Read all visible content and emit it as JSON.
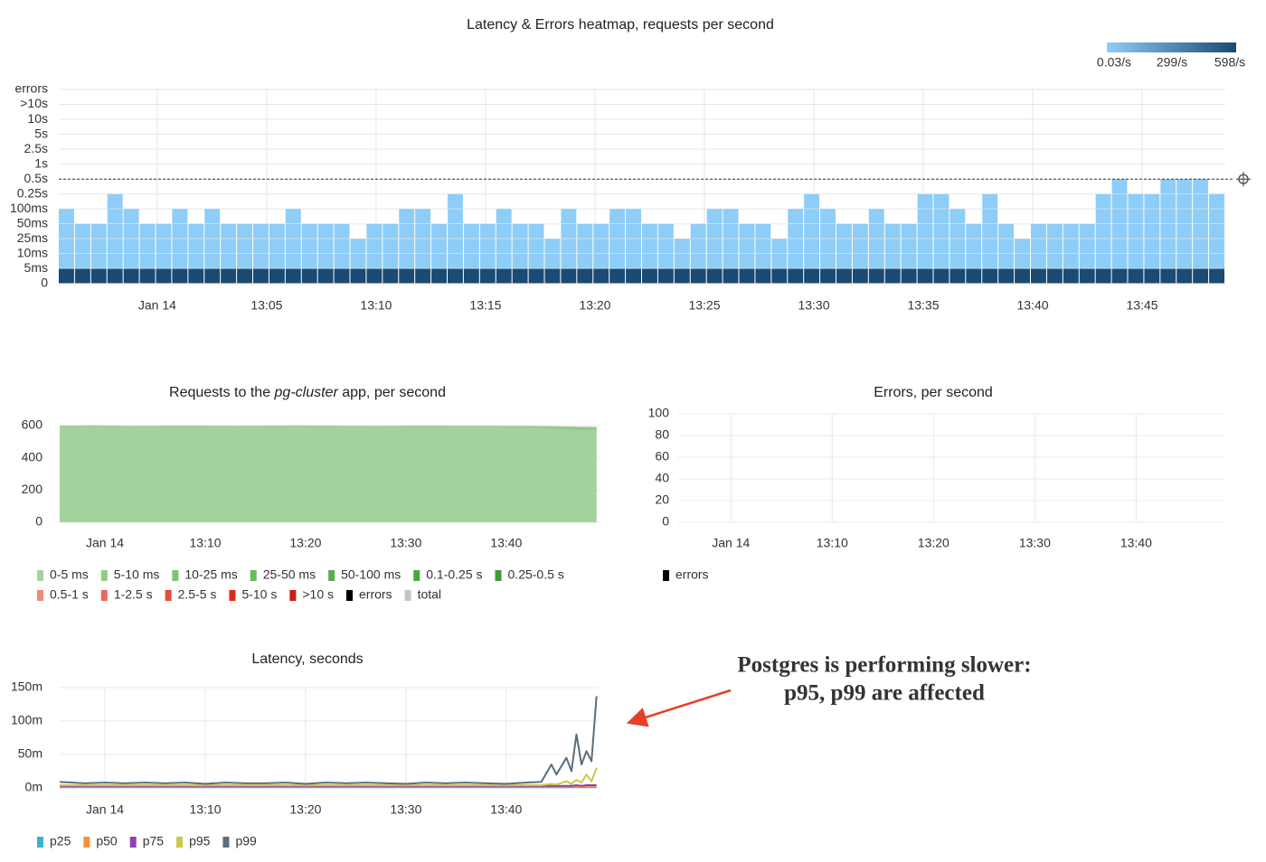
{
  "chart_data": [
    {
      "type": "heatmap",
      "title": "Latency & Errors heatmap, requests per second",
      "y_categories": [
        "0",
        "5ms",
        "10ms",
        "25ms",
        "50ms",
        "100ms",
        "0.25s",
        "0.5s",
        "1s",
        "2.5s",
        "5s",
        "10s",
        ">10s",
        "errors"
      ],
      "values": [
        5,
        4,
        4,
        6,
        5,
        4,
        4,
        5,
        4,
        5,
        4,
        4,
        4,
        4,
        5,
        4,
        4,
        4,
        3,
        4,
        4,
        5,
        5,
        4,
        6,
        4,
        4,
        5,
        4,
        4,
        3,
        5,
        4,
        4,
        5,
        5,
        4,
        4,
        3,
        4,
        5,
        5,
        4,
        4,
        3,
        5,
        6,
        5,
        4,
        4,
        5,
        4,
        4,
        6,
        6,
        5,
        4,
        6,
        4,
        3,
        4,
        4,
        4,
        4,
        6,
        7,
        6,
        6,
        7,
        7,
        7,
        6
      ],
      "row_rates": [
        598,
        1.5,
        1.2,
        0.8,
        0.3,
        0.1,
        0.05,
        0.03,
        0.03,
        0.03,
        0.03,
        0.03,
        0.03
      ],
      "colorscale": {
        "colors": [
          "#8ecdf7",
          "#1b4a72"
        ],
        "ticks": [
          {
            "value": 0.03,
            "label": "0.03/s"
          },
          {
            "value": 299,
            "label": "299/s"
          },
          {
            "value": 598,
            "label": "598/s"
          }
        ]
      },
      "xlim": [
        -4.5,
        48.8
      ],
      "xticks": [
        {
          "value": 0,
          "label": "Jan 14"
        },
        {
          "value": 5,
          "label": "13:05"
        },
        {
          "value": 10,
          "label": "13:10"
        },
        {
          "value": 15,
          "label": "13:15"
        },
        {
          "value": 20,
          "label": "13:20"
        },
        {
          "value": 25,
          "label": "13:25"
        },
        {
          "value": 30,
          "label": "13:30"
        },
        {
          "value": 35,
          "label": "13:35"
        },
        {
          "value": 40,
          "label": "13:40"
        },
        {
          "value": 45,
          "label": "13:45"
        }
      ],
      "grid": true
    },
    {
      "type": "area",
      "title": [
        "Requests to the ",
        "pg-cluster",
        " app, per second"
      ],
      "x": [
        -4.5,
        -1,
        3,
        7,
        11,
        15,
        19,
        23,
        27,
        31,
        35,
        39,
        43,
        46,
        49
      ],
      "series": [
        {
          "name": "0-5 ms",
          "color": "#a3d39c",
          "values": [
            590,
            592,
            588,
            591,
            590,
            589,
            592,
            590,
            588,
            591,
            590,
            589,
            585,
            575,
            570
          ]
        },
        {
          "name": "5-10 ms",
          "color": "#8fcc86",
          "values": [
            3,
            3,
            3,
            3,
            3,
            3,
            3,
            3,
            3,
            3,
            3,
            3,
            5,
            12,
            14
          ]
        },
        {
          "name": "10-25 ms",
          "color": "#7dc373",
          "values": [
            1,
            1,
            1,
            1,
            1,
            1,
            1,
            1,
            1,
            1,
            1,
            1,
            2,
            3,
            3
          ]
        },
        {
          "name": "25-50 ms",
          "color": "#6bbb62",
          "values": [
            0,
            0,
            0,
            0,
            0,
            0,
            0,
            0,
            0,
            0,
            0,
            0,
            0,
            0,
            0
          ]
        },
        {
          "name": "50-100 ms",
          "color": "#5cad52",
          "values": [
            0,
            0,
            0,
            0,
            0,
            0,
            0,
            0,
            0,
            0,
            0,
            0,
            0,
            0,
            0
          ]
        },
        {
          "name": "0.1-0.25 s",
          "color": "#4ea345",
          "values": [
            0,
            0,
            0,
            0,
            0,
            0,
            0,
            0,
            0,
            0,
            0,
            0,
            0,
            0,
            0
          ]
        },
        {
          "name": "0.25-0.5 s",
          "color": "#3f9a38",
          "values": [
            0,
            0,
            0,
            0,
            0,
            0,
            0,
            0,
            0,
            0,
            0,
            0,
            0,
            0,
            0
          ]
        },
        {
          "name": "0.5-1 s",
          "color": "#ef8a7a",
          "values": [
            0,
            0,
            0,
            0,
            0,
            0,
            0,
            0,
            0,
            0,
            0,
            0,
            0,
            0,
            0
          ]
        },
        {
          "name": "1-2.5 s",
          "color": "#ea6a5a",
          "values": [
            0,
            0,
            0,
            0,
            0,
            0,
            0,
            0,
            0,
            0,
            0,
            0,
            0,
            0,
            0
          ]
        },
        {
          "name": "2.5-5 s",
          "color": "#e54b3c",
          "values": [
            0,
            0,
            0,
            0,
            0,
            0,
            0,
            0,
            0,
            0,
            0,
            0,
            0,
            0,
            0
          ]
        },
        {
          "name": "5-10 s",
          "color": "#dd2a20",
          "values": [
            0,
            0,
            0,
            0,
            0,
            0,
            0,
            0,
            0,
            0,
            0,
            0,
            0,
            0,
            0
          ]
        },
        {
          "name": ">10 s",
          "color": "#d01c10",
          "values": [
            0,
            0,
            0,
            0,
            0,
            0,
            0,
            0,
            0,
            0,
            0,
            0,
            0,
            0,
            0
          ]
        },
        {
          "name": "errors",
          "color": "#000000",
          "values": [
            0,
            0,
            0,
            0,
            0,
            0,
            0,
            0,
            0,
            0,
            0,
            0,
            0,
            0,
            0
          ]
        },
        {
          "name": "total",
          "color": "#c4c4c4",
          "stack": false,
          "values": [
            600,
            603,
            598,
            601,
            600,
            599,
            602,
            600,
            598,
            601,
            600,
            599,
            598,
            595,
            592
          ]
        }
      ],
      "xlim": [
        -4.6,
        49.3
      ],
      "xticks": [
        {
          "value": 0,
          "label": "Jan 14"
        },
        {
          "value": 10,
          "label": "13:10"
        },
        {
          "value": 20,
          "label": "13:20"
        },
        {
          "value": 30,
          "label": "13:30"
        },
        {
          "value": 40,
          "label": "13:40"
        }
      ],
      "ylim": [
        0,
        600
      ],
      "yticks": [
        0,
        200,
        400,
        600
      ],
      "grid": true
    },
    {
      "type": "line",
      "title": "Errors, per second",
      "x": [
        0,
        10,
        20,
        30,
        40
      ],
      "series": [
        {
          "name": "errors",
          "color": "#000000",
          "values": [
            null,
            null,
            null,
            null,
            null
          ]
        }
      ],
      "xlim": [
        -5.2,
        48.8
      ],
      "xticks": [
        {
          "value": 0,
          "label": "Jan 14"
        },
        {
          "value": 10,
          "label": "13:10"
        },
        {
          "value": 20,
          "label": "13:20"
        },
        {
          "value": 30,
          "label": "13:30"
        },
        {
          "value": 40,
          "label": "13:40"
        }
      ],
      "ylim": [
        0,
        100
      ],
      "yticks": [
        0,
        20,
        40,
        60,
        80,
        100
      ],
      "grid": true
    },
    {
      "type": "line",
      "title": "Latency, seconds",
      "x": [
        -4.5,
        -2,
        0,
        2,
        4,
        6,
        8,
        10,
        12,
        14,
        16,
        18,
        20,
        22,
        24,
        26,
        28,
        30,
        32,
        34,
        36,
        38,
        40,
        42,
        43.5,
        44.5,
        45,
        46,
        46.5,
        47,
        47.5,
        48,
        48.5,
        49
      ],
      "series": [
        {
          "name": "p25",
          "color": "#3bb3c8",
          "values": [
            0.001,
            0.001,
            0.001,
            0.001,
            0.001,
            0.001,
            0.001,
            0.001,
            0.001,
            0.001,
            0.001,
            0.001,
            0.001,
            0.001,
            0.001,
            0.001,
            0.001,
            0.001,
            0.001,
            0.001,
            0.001,
            0.001,
            0.001,
            0.001,
            0.001,
            0.001,
            0.001,
            0.001,
            0.001,
            0.001,
            0.001,
            0.001,
            0.001,
            0.001
          ]
        },
        {
          "name": "p50",
          "color": "#f2923a",
          "values": [
            0.002,
            0.002,
            0.002,
            0.002,
            0.002,
            0.002,
            0.002,
            0.002,
            0.002,
            0.002,
            0.002,
            0.002,
            0.002,
            0.002,
            0.002,
            0.002,
            0.002,
            0.002,
            0.002,
            0.002,
            0.002,
            0.002,
            0.002,
            0.002,
            0.002,
            0.002,
            0.002,
            0.002,
            0.002,
            0.002,
            0.002,
            0.002,
            0.002,
            0.002
          ]
        },
        {
          "name": "p75",
          "color": "#8e3fb3",
          "values": [
            0.003,
            0.003,
            0.003,
            0.003,
            0.003,
            0.003,
            0.003,
            0.003,
            0.003,
            0.003,
            0.003,
            0.003,
            0.003,
            0.003,
            0.003,
            0.003,
            0.003,
            0.003,
            0.003,
            0.003,
            0.003,
            0.003,
            0.003,
            0.003,
            0.003,
            0.003,
            0.003,
            0.003,
            0.003,
            0.004,
            0.003,
            0.004,
            0.004,
            0.004
          ]
        },
        {
          "name": "p95",
          "color": "#c9c94a",
          "values": [
            0.004,
            0.004,
            0.004,
            0.004,
            0.004,
            0.004,
            0.004,
            0.004,
            0.004,
            0.004,
            0.004,
            0.004,
            0.004,
            0.004,
            0.004,
            0.004,
            0.004,
            0.004,
            0.004,
            0.004,
            0.004,
            0.004,
            0.004,
            0.004,
            0.004,
            0.006,
            0.005,
            0.01,
            0.006,
            0.012,
            0.008,
            0.02,
            0.01,
            0.03
          ]
        },
        {
          "name": "p99",
          "color": "#5a6e7c",
          "values": [
            0.009,
            0.007,
            0.008,
            0.007,
            0.008,
            0.007,
            0.008,
            0.006,
            0.008,
            0.007,
            0.007,
            0.008,
            0.006,
            0.008,
            0.007,
            0.008,
            0.007,
            0.006,
            0.008,
            0.007,
            0.008,
            0.007,
            0.006,
            0.008,
            0.009,
            0.035,
            0.02,
            0.045,
            0.025,
            0.08,
            0.035,
            0.055,
            0.04,
            0.137
          ]
        }
      ],
      "xlim": [
        -4.6,
        49.3
      ],
      "xticks": [
        {
          "value": 0,
          "label": "Jan 14"
        },
        {
          "value": 10,
          "label": "13:10"
        },
        {
          "value": 20,
          "label": "13:20"
        },
        {
          "value": 30,
          "label": "13:30"
        },
        {
          "value": 40,
          "label": "13:40"
        }
      ],
      "ylim": [
        0,
        0.15
      ],
      "yticks": [
        {
          "value": 0,
          "label": "0m"
        },
        {
          "value": 0.05,
          "label": "50m"
        },
        {
          "value": 0.1,
          "label": "100m"
        },
        {
          "value": 0.15,
          "label": "150m"
        }
      ],
      "grid": true
    }
  ],
  "annotation": {
    "lines": [
      "Postgres is performing slower:",
      "p95, p99 are affected"
    ],
    "color": "#e5402a"
  }
}
